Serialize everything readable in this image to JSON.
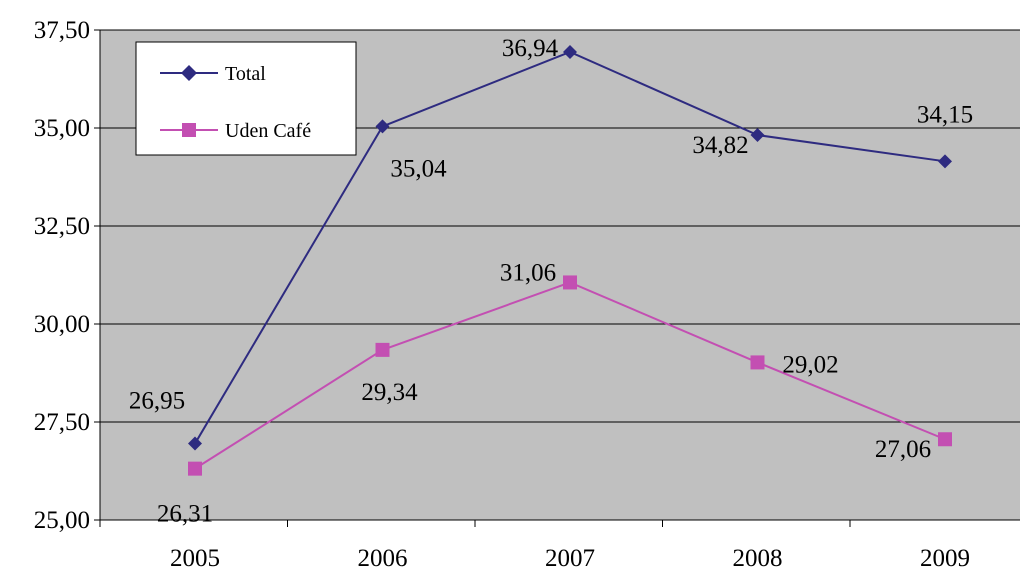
{
  "chart_data": {
    "type": "line",
    "title": "",
    "xlabel": "",
    "ylabel": "",
    "categories": [
      "2005",
      "2006",
      "2007",
      "2008",
      "2009"
    ],
    "ylim": [
      25,
      37.5
    ],
    "yticks": [
      25,
      27.5,
      30,
      32.5,
      35,
      37.5
    ],
    "ytick_labels": [
      "25,00",
      "27,50",
      "30,00",
      "32,50",
      "35,00",
      "37,50"
    ],
    "grid": true,
    "plot_background": "#c0c0c0",
    "legend": {
      "position": "top-left"
    },
    "series": [
      {
        "name": "Total",
        "color": "#2e2b80",
        "marker": "diamond",
        "values": [
          26.95,
          35.04,
          36.94,
          34.82,
          34.15
        ],
        "labels": [
          "26,95",
          "35,04",
          "36,94",
          "34,82",
          "34,15"
        ]
      },
      {
        "name": "Uden Café",
        "color": "#c34fb2",
        "marker": "square",
        "values": [
          26.31,
          29.34,
          31.06,
          29.02,
          27.06
        ],
        "labels": [
          "26,31",
          "29,34",
          "31,06",
          "29,02",
          "27,06"
        ]
      }
    ]
  }
}
